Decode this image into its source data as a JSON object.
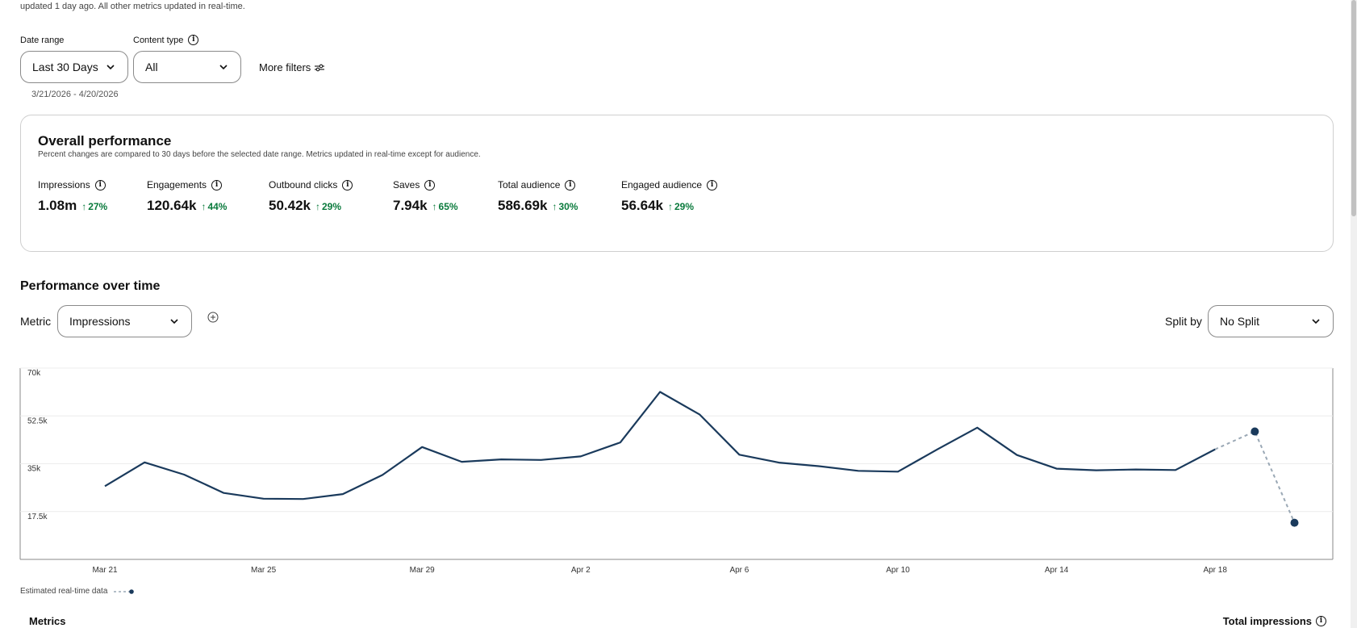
{
  "top_note": "updated 1 day ago. All other metrics updated in real-time.",
  "filters": {
    "date_range_label": "Date range",
    "date_range_value": "Last 30 Days",
    "content_type_label": "Content type",
    "content_type_value": "All",
    "more_filters": "More filters",
    "date_span": "3/21/2026 - 4/20/2026"
  },
  "overall": {
    "title": "Overall performance",
    "subtitle": "Percent changes are compared to 30 days before the selected date range. Metrics updated in real-time except for audience.",
    "metrics": [
      {
        "label": "Impressions",
        "value": "1.08m",
        "change": "27%"
      },
      {
        "label": "Engagements",
        "value": "120.64k",
        "change": "44%"
      },
      {
        "label": "Outbound clicks",
        "value": "50.42k",
        "change": "29%"
      },
      {
        "label": "Saves",
        "value": "7.94k",
        "change": "65%"
      },
      {
        "label": "Total audience",
        "value": "586.69k",
        "change": "30%"
      },
      {
        "label": "Engaged audience",
        "value": "56.64k",
        "change": "29%"
      }
    ]
  },
  "performance": {
    "title": "Performance over time",
    "metric_label": "Metric",
    "metric_value": "Impressions",
    "split_label": "Split by",
    "split_value": "No Split"
  },
  "chart_data": {
    "type": "line",
    "x": [
      "Mar 21",
      "Mar 22",
      "Mar 23",
      "Mar 24",
      "Mar 25",
      "Mar 26",
      "Mar 27",
      "Mar 28",
      "Mar 29",
      "Mar 30",
      "Mar 31",
      "Apr 1",
      "Apr 2",
      "Apr 3",
      "Apr 4",
      "Apr 5",
      "Apr 6",
      "Apr 7",
      "Apr 8",
      "Apr 9",
      "Apr 10",
      "Apr 11",
      "Apr 12",
      "Apr 13",
      "Apr 14",
      "Apr 15",
      "Apr 16",
      "Apr 17",
      "Apr 18",
      "Apr 19",
      "Apr 20"
    ],
    "values": [
      26800,
      35500,
      31000,
      24300,
      22200,
      22100,
      23900,
      30900,
      41100,
      35700,
      36600,
      36400,
      37700,
      42800,
      61300,
      53000,
      38300,
      35400,
      34100,
      32400,
      32100,
      40300,
      48200,
      38200,
      33200,
      32600,
      32900,
      32700,
      40300,
      46800,
      13400
    ],
    "estimated_from_index": 28,
    "tick_labels": [
      "Mar 21",
      "Mar 25",
      "Mar 29",
      "Apr 2",
      "Apr 6",
      "Apr 10",
      "Apr 14",
      "Apr 18"
    ],
    "y_ticks": [
      "70k",
      "52.5k",
      "35k",
      "17.5k"
    ],
    "ylim": [
      0,
      70000
    ],
    "line_color": "#1a3a5c",
    "estimate_color": "#9aa8b5",
    "grid": true
  },
  "legend_text": "Estimated real-time data",
  "bottom": {
    "left": "Metrics",
    "right": "Total impressions"
  }
}
